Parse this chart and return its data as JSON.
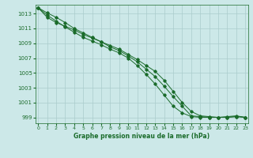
{
  "bg_color": "#cce8e8",
  "line_color": "#1a6b2a",
  "grid_color": "#aacccc",
  "xlabel": "Graphe pression niveau de la mer (hPa)",
  "ylabel_ticks": [
    999,
    1001,
    1003,
    1005,
    1007,
    1009,
    1011,
    1013
  ],
  "xticks": [
    0,
    1,
    2,
    3,
    4,
    5,
    6,
    7,
    8,
    9,
    10,
    11,
    12,
    13,
    14,
    15,
    16,
    17,
    18,
    19,
    20,
    21,
    22,
    23
  ],
  "ylim": [
    998.2,
    1014.2
  ],
  "xlim": [
    -0.3,
    23.3
  ],
  "series": [
    [
      1013.8,
      1013.1,
      1012.5,
      1011.8,
      1011.0,
      1010.4,
      1009.8,
      1009.2,
      1008.5,
      1008.0,
      1007.3,
      1006.5,
      1005.5,
      1004.5,
      1003.2,
      1001.8,
      1000.5,
      999.2,
      999.1,
      999.0,
      999.0,
      999.0,
      999.1,
      999.0
    ],
    [
      1013.8,
      1012.8,
      1012.0,
      1011.2,
      1010.5,
      1009.8,
      1009.3,
      1008.8,
      1008.2,
      1007.7,
      1007.0,
      1006.0,
      1004.8,
      1003.5,
      1002.0,
      1000.5,
      999.6,
      999.1,
      999.0,
      999.0,
      999.0,
      999.0,
      999.1,
      999.0
    ],
    [
      1013.8,
      1012.5,
      1011.8,
      1011.3,
      1010.8,
      1010.2,
      1009.7,
      1009.2,
      1008.7,
      1008.2,
      1007.5,
      1006.8,
      1006.0,
      1005.2,
      1004.0,
      1002.5,
      1001.0,
      999.8,
      999.2,
      999.1,
      999.0,
      999.1,
      999.2,
      999.0
    ]
  ]
}
